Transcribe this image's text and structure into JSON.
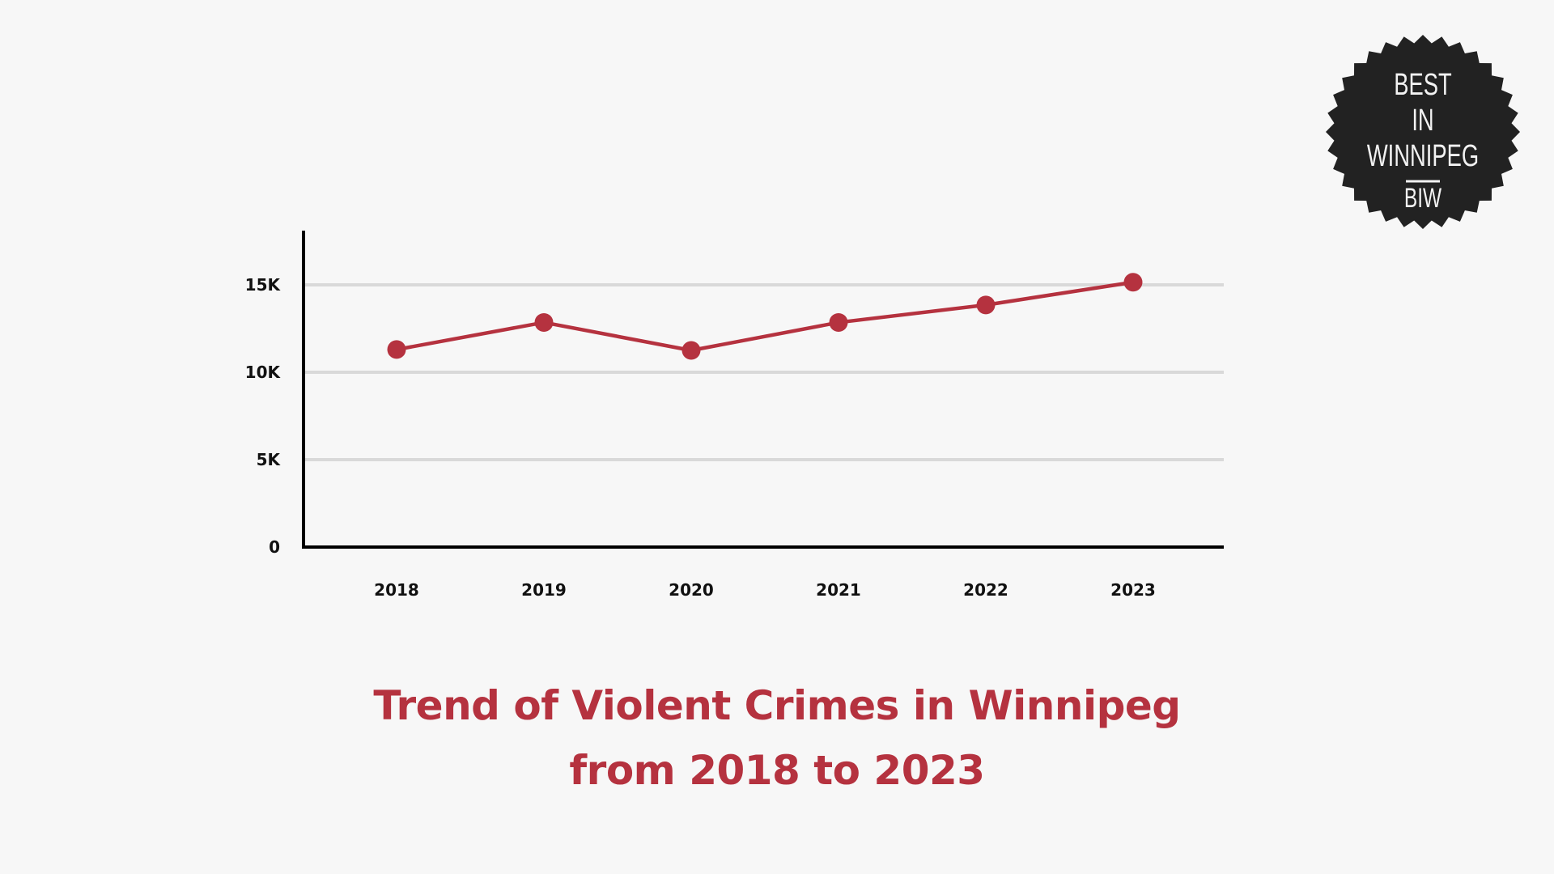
{
  "chart_data": {
    "type": "line",
    "title": "Trend of Violent Crimes in Winnipeg from 2018 to 2023",
    "title_lines": [
      "Trend of Violent Crimes in Winnipeg",
      "from 2018 to 2023"
    ],
    "xlabel": "",
    "ylabel": "",
    "categories": [
      "2018",
      "2019",
      "2020",
      "2021",
      "2022",
      "2023"
    ],
    "values": [
      11300,
      12850,
      11250,
      12850,
      13850,
      15150
    ],
    "ylim": [
      0,
      18000
    ],
    "yticks": [
      0,
      5000,
      10000,
      15000
    ],
    "ytick_labels": [
      "0",
      "5K",
      "10K",
      "15K"
    ],
    "grid": true,
    "legend": "none",
    "colors": {
      "line": "#b5323f",
      "grid": "#d9d9d9",
      "axis": "#000000",
      "title": "#b5323f",
      "background": "#f7f7f7"
    }
  },
  "badge": {
    "lines": [
      "BEST",
      "IN",
      "WINNIPEG"
    ],
    "abbr": "BIW",
    "color": "#222222"
  }
}
